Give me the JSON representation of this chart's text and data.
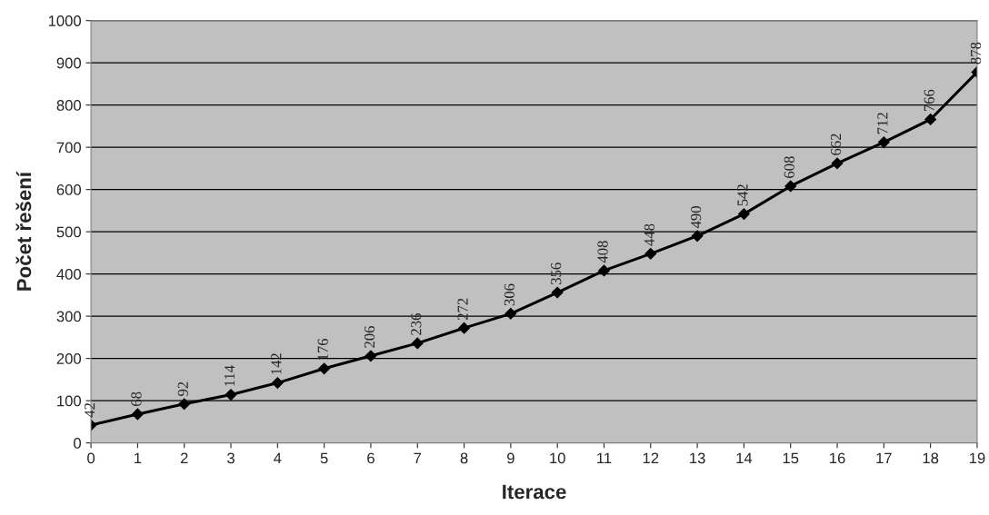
{
  "chart_data": {
    "type": "line",
    "xlabel": "Iterace",
    "ylabel": "Počet řešení",
    "x": [
      0,
      1,
      2,
      3,
      4,
      5,
      6,
      7,
      8,
      9,
      10,
      11,
      12,
      13,
      14,
      15,
      16,
      17,
      18,
      19
    ],
    "series": [
      {
        "color": "#000000",
        "values": [
          42,
          68,
          92,
          114,
          142,
          176,
          206,
          236,
          272,
          306,
          356,
          408,
          448,
          490,
          542,
          608,
          662,
          712,
          766,
          878
        ]
      }
    ],
    "xlim": [
      0,
      19
    ],
    "xticks": [
      0,
      1,
      2,
      3,
      4,
      5,
      6,
      7,
      8,
      9,
      10,
      11,
      12,
      13,
      14,
      15,
      16,
      17,
      18,
      19
    ],
    "ylim": [
      0,
      1000
    ],
    "yticks": [
      0,
      100,
      200,
      300,
      400,
      500,
      600,
      700,
      800,
      900,
      1000
    ],
    "grid": "y",
    "marker": "diamond",
    "line_style": "solid",
    "data_labels": true,
    "legend": false
  }
}
